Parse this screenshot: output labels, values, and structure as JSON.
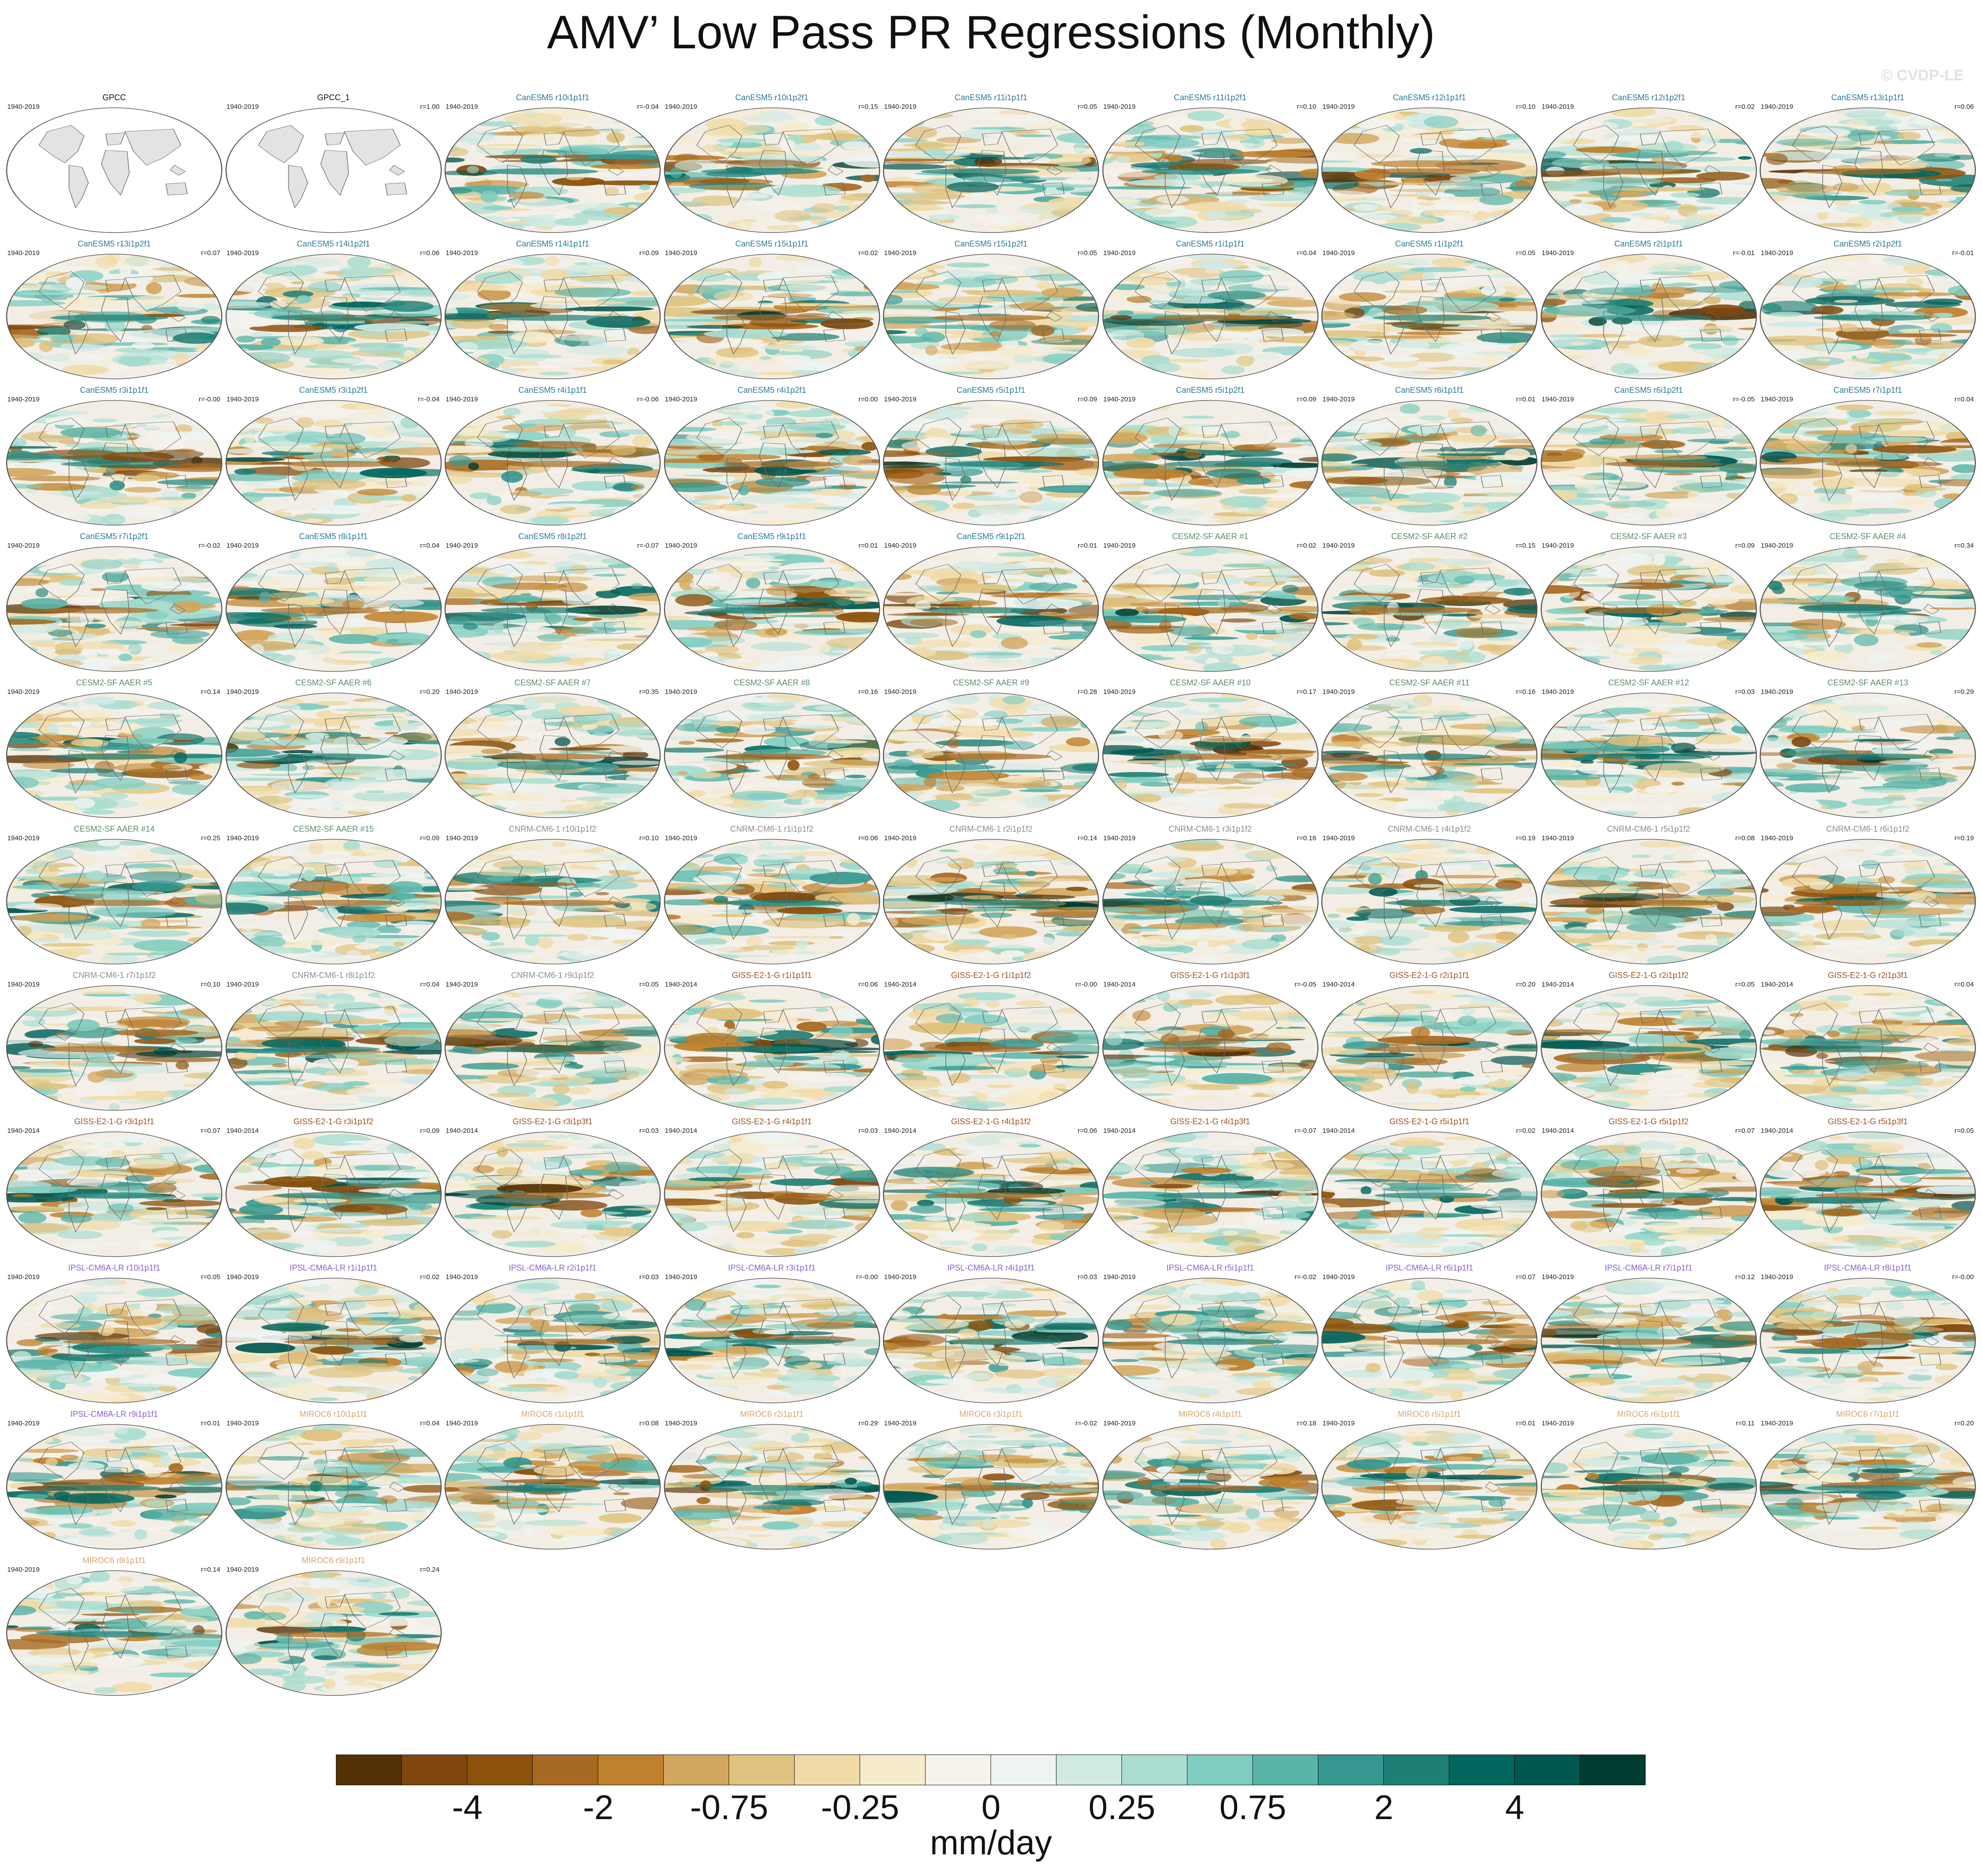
{
  "title": "AMV’ Low Pass PR Regressions (Monthly)",
  "watermark": "© CVDP-LE",
  "group_colors": {
    "obs": "#111111",
    "CanESM5": "#2a7a9b",
    "CESM2-SF AAER": "#5b8e6a",
    "CNRM-CM6-1": "#8c8c8c",
    "GISS-E2-1-G": "#a0531f",
    "IPSL-CM6A-LR": "#8a5fd0",
    "MIROC6": "#d9a46c"
  },
  "land_fill": "#e3e3e3",
  "coast_color": "#6a6a6a",
  "panels": [
    {
      "name": "GPCC",
      "years": "1940-2019",
      "r": "",
      "group": "obs",
      "style": "obs"
    },
    {
      "name": "GPCC_1",
      "years": "1940-2019",
      "r": "r=1.00",
      "group": "obs",
      "style": "obs"
    },
    {
      "name": "CanESM5 r10i1p1f1",
      "years": "1940-2019",
      "r": "r=-0.04",
      "group": "CanESM5",
      "style": "model"
    },
    {
      "name": "CanESM5 r10i1p2f1",
      "years": "1940-2019",
      "r": "r=0.15",
      "group": "CanESM5",
      "style": "model"
    },
    {
      "name": "CanESM5 r11i1p1f1",
      "years": "1940-2019",
      "r": "r=0.05",
      "group": "CanESM5",
      "style": "model"
    },
    {
      "name": "CanESM5 r11i1p2f1",
      "years": "1940-2019",
      "r": "r=0.10",
      "group": "CanESM5",
      "style": "model"
    },
    {
      "name": "CanESM5 r12i1p1f1",
      "years": "1940-2019",
      "r": "r=0.10",
      "group": "CanESM5",
      "style": "model"
    },
    {
      "name": "CanESM5 r12i1p2f1",
      "years": "1940-2019",
      "r": "r=0.02",
      "group": "CanESM5",
      "style": "model"
    },
    {
      "name": "CanESM5 r13i1p1f1",
      "years": "1940-2019",
      "r": "r=0.06",
      "group": "CanESM5",
      "style": "model"
    },
    {
      "name": "CanESM5 r13i1p2f1",
      "years": "1940-2019",
      "r": "r=0.07",
      "group": "CanESM5",
      "style": "model"
    },
    {
      "name": "CanESM5 r14i1p2f1",
      "years": "1940-2019",
      "r": "r=0.06",
      "group": "CanESM5",
      "style": "model"
    },
    {
      "name": "CanESM5 r14i1p1f1",
      "years": "1940-2019",
      "r": "r=0.09",
      "group": "CanESM5",
      "style": "model"
    },
    {
      "name": "CanESM5 r15i1p1f1",
      "years": "1940-2019",
      "r": "r=0.02",
      "group": "CanESM5",
      "style": "model"
    },
    {
      "name": "CanESM5 r15i1p2f1",
      "years": "1940-2019",
      "r": "r=0.05",
      "group": "CanESM5",
      "style": "model"
    },
    {
      "name": "CanESM5 r1i1p1f1",
      "years": "1940-2019",
      "r": "r=0.04",
      "group": "CanESM5",
      "style": "model"
    },
    {
      "name": "CanESM5 r1i1p2f1",
      "years": "1940-2019",
      "r": "r=0.05",
      "group": "CanESM5",
      "style": "model"
    },
    {
      "name": "CanESM5 r2i1p1f1",
      "years": "1940-2019",
      "r": "r=-0.01",
      "group": "CanESM5",
      "style": "model"
    },
    {
      "name": "CanESM5 r2i1p2f1",
      "years": "1940-2019",
      "r": "r=-0.01",
      "group": "CanESM5",
      "style": "model"
    },
    {
      "name": "CanESM5 r3i1p1f1",
      "years": "1940-2019",
      "r": "r=-0.00",
      "group": "CanESM5",
      "style": "model"
    },
    {
      "name": "CanESM5 r3i1p2f1",
      "years": "1940-2019",
      "r": "r=-0.04",
      "group": "CanESM5",
      "style": "model"
    },
    {
      "name": "CanESM5 r4i1p1f1",
      "years": "1940-2019",
      "r": "r=-0.06",
      "group": "CanESM5",
      "style": "model"
    },
    {
      "name": "CanESM5 r4i1p2f1",
      "years": "1940-2019",
      "r": "r=0.00",
      "group": "CanESM5",
      "style": "model"
    },
    {
      "name": "CanESM5 r5i1p1f1",
      "years": "1940-2019",
      "r": "r=0.09",
      "group": "CanESM5",
      "style": "model"
    },
    {
      "name": "CanESM5 r5i1p2f1",
      "years": "1940-2019",
      "r": "r=0.09",
      "group": "CanESM5",
      "style": "model"
    },
    {
      "name": "CanESM5 r6i1p1f1",
      "years": "1940-2019",
      "r": "r=0.01",
      "group": "CanESM5",
      "style": "model"
    },
    {
      "name": "CanESM5 r6i1p2f1",
      "years": "1940-2019",
      "r": "r=-0.05",
      "group": "CanESM5",
      "style": "model"
    },
    {
      "name": "CanESM5 r7i1p1f1",
      "years": "1940-2019",
      "r": "r=0.04",
      "group": "CanESM5",
      "style": "model"
    },
    {
      "name": "CanESM5 r7i1p2f1",
      "years": "1940-2019",
      "r": "r=-0.02",
      "group": "CanESM5",
      "style": "model"
    },
    {
      "name": "CanESM5 r8i1p1f1",
      "years": "1940-2019",
      "r": "r=0.04",
      "group": "CanESM5",
      "style": "model"
    },
    {
      "name": "CanESM5 r8i1p2f1",
      "years": "1940-2019",
      "r": "r=-0.07",
      "group": "CanESM5",
      "style": "model"
    },
    {
      "name": "CanESM5 r9i1p1f1",
      "years": "1940-2019",
      "r": "r=0.01",
      "group": "CanESM5",
      "style": "model"
    },
    {
      "name": "CanESM5 r9i1p2f1",
      "years": "1940-2019",
      "r": "r=0.01",
      "group": "CanESM5",
      "style": "model"
    },
    {
      "name": "CESM2-SF AAER #1",
      "years": "1940-2019",
      "r": "r=0.02",
      "group": "CESM2-SF AAER",
      "style": "model"
    },
    {
      "name": "CESM2-SF AAER #2",
      "years": "1940-2019",
      "r": "r=0.15",
      "group": "CESM2-SF AAER",
      "style": "model"
    },
    {
      "name": "CESM2-SF AAER #3",
      "years": "1940-2019",
      "r": "r=0.09",
      "group": "CESM2-SF AAER",
      "style": "model"
    },
    {
      "name": "CESM2-SF AAER #4",
      "years": "1940-2019",
      "r": "r=0.34",
      "group": "CESM2-SF AAER",
      "style": "model"
    },
    {
      "name": "CESM2-SF AAER #5",
      "years": "1940-2019",
      "r": "r=0.14",
      "group": "CESM2-SF AAER",
      "style": "model"
    },
    {
      "name": "CESM2-SF AAER #6",
      "years": "1940-2019",
      "r": "r=0.20",
      "group": "CESM2-SF AAER",
      "style": "model"
    },
    {
      "name": "CESM2-SF AAER #7",
      "years": "1940-2019",
      "r": "r=0.35",
      "group": "CESM2-SF AAER",
      "style": "model"
    },
    {
      "name": "CESM2-SF AAER #8",
      "years": "1940-2019",
      "r": "r=0.16",
      "group": "CESM2-SF AAER",
      "style": "model"
    },
    {
      "name": "CESM2-SF AAER #9",
      "years": "1940-2019",
      "r": "r=0.28",
      "group": "CESM2-SF AAER",
      "style": "model"
    },
    {
      "name": "CESM2-SF AAER #10",
      "years": "1940-2019",
      "r": "r=0.17",
      "group": "CESM2-SF AAER",
      "style": "model"
    },
    {
      "name": "CESM2-SF AAER #11",
      "years": "1940-2019",
      "r": "r=0.16",
      "group": "CESM2-SF AAER",
      "style": "model"
    },
    {
      "name": "CESM2-SF AAER #12",
      "years": "1940-2019",
      "r": "r=0.03",
      "group": "CESM2-SF AAER",
      "style": "model"
    },
    {
      "name": "CESM2-SF AAER #13",
      "years": "1940-2019",
      "r": "r=0.29",
      "group": "CESM2-SF AAER",
      "style": "model"
    },
    {
      "name": "CESM2-SF AAER #14",
      "years": "1940-2019",
      "r": "r=0.25",
      "group": "CESM2-SF AAER",
      "style": "model"
    },
    {
      "name": "CESM2-SF AAER #15",
      "years": "1940-2019",
      "r": "r=0.09",
      "group": "CESM2-SF AAER",
      "style": "model"
    },
    {
      "name": "CNRM-CM6-1 r10i1p1f2",
      "years": "1940-2019",
      "r": "r=0.10",
      "group": "CNRM-CM6-1",
      "style": "model"
    },
    {
      "name": "CNRM-CM6-1 r1i1p1f2",
      "years": "1940-2019",
      "r": "r=0.06",
      "group": "CNRM-CM6-1",
      "style": "model"
    },
    {
      "name": "CNRM-CM6-1 r2i1p1f2",
      "years": "1940-2019",
      "r": "r=0.14",
      "group": "CNRM-CM6-1",
      "style": "model"
    },
    {
      "name": "CNRM-CM6-1 r3i1p1f2",
      "years": "1940-2019",
      "r": "r=0.16",
      "group": "CNRM-CM6-1",
      "style": "model"
    },
    {
      "name": "CNRM-CM6-1 r4i1p1f2",
      "years": "1940-2019",
      "r": "r=0.19",
      "group": "CNRM-CM6-1",
      "style": "model"
    },
    {
      "name": "CNRM-CM6-1 r5i1p1f2",
      "years": "1940-2019",
      "r": "r=0.08",
      "group": "CNRM-CM6-1",
      "style": "model"
    },
    {
      "name": "CNRM-CM6-1 r6i1p1f2",
      "years": "1940-2019",
      "r": "r=0.19",
      "group": "CNRM-CM6-1",
      "style": "model"
    },
    {
      "name": "CNRM-CM6-1 r7i1p1f2",
      "years": "1940-2019",
      "r": "r=0.10",
      "group": "CNRM-CM6-1",
      "style": "model"
    },
    {
      "name": "CNRM-CM6-1 r8i1p1f2",
      "years": "1940-2019",
      "r": "r=0.04",
      "group": "CNRM-CM6-1",
      "style": "model"
    },
    {
      "name": "CNRM-CM6-1 r9i1p1f2",
      "years": "1940-2019",
      "r": "r=0.05",
      "group": "CNRM-CM6-1",
      "style": "model"
    },
    {
      "name": "GISS-E2-1-G r1i1p1f1",
      "years": "1940-2014",
      "r": "r=0.06",
      "group": "GISS-E2-1-G",
      "style": "model"
    },
    {
      "name": "GISS-E2-1-G r1i1p1f2",
      "years": "1940-2014",
      "r": "r=-0.00",
      "group": "GISS-E2-1-G",
      "style": "model"
    },
    {
      "name": "GISS-E2-1-G r1i1p3f1",
      "years": "1940-2014",
      "r": "r=-0.05",
      "group": "GISS-E2-1-G",
      "style": "model"
    },
    {
      "name": "GISS-E2-1-G r2i1p1f1",
      "years": "1940-2014",
      "r": "r=0.20",
      "group": "GISS-E2-1-G",
      "style": "model"
    },
    {
      "name": "GISS-E2-1-G r2i1p1f2",
      "years": "1940-2014",
      "r": "r=0.05",
      "group": "GISS-E2-1-G",
      "style": "model"
    },
    {
      "name": "GISS-E2-1-G r2i1p3f1",
      "years": "1940-2014",
      "r": "r=0.04",
      "group": "GISS-E2-1-G",
      "style": "model"
    },
    {
      "name": "GISS-E2-1-G r3i1p1f1",
      "years": "1940-2014",
      "r": "r=0.07",
      "group": "GISS-E2-1-G",
      "style": "model"
    },
    {
      "name": "GISS-E2-1-G r3i1p1f2",
      "years": "1940-2014",
      "r": "r=0.09",
      "group": "GISS-E2-1-G",
      "style": "model"
    },
    {
      "name": "GISS-E2-1-G r3i1p3f1",
      "years": "1940-2014",
      "r": "r=0.03",
      "group": "GISS-E2-1-G",
      "style": "model"
    },
    {
      "name": "GISS-E2-1-G r4i1p1f1",
      "years": "1940-2014",
      "r": "r=0.03",
      "group": "GISS-E2-1-G",
      "style": "model"
    },
    {
      "name": "GISS-E2-1-G r4i1p1f2",
      "years": "1940-2014",
      "r": "r=0.06",
      "group": "GISS-E2-1-G",
      "style": "model"
    },
    {
      "name": "GISS-E2-1-G r4i1p3f1",
      "years": "1940-2014",
      "r": "r=-0.07",
      "group": "GISS-E2-1-G",
      "style": "model"
    },
    {
      "name": "GISS-E2-1-G r5i1p1f1",
      "years": "1940-2014",
      "r": "r=0.02",
      "group": "GISS-E2-1-G",
      "style": "model"
    },
    {
      "name": "GISS-E2-1-G r5i1p1f2",
      "years": "1940-2014",
      "r": "r=0.07",
      "group": "GISS-E2-1-G",
      "style": "model"
    },
    {
      "name": "GISS-E2-1-G r5i1p3f1",
      "years": "1940-2014",
      "r": "r=0.05",
      "group": "GISS-E2-1-G",
      "style": "model"
    },
    {
      "name": "IPSL-CM6A-LR r10i1p1f1",
      "years": "1940-2019",
      "r": "r=0.05",
      "group": "IPSL-CM6A-LR",
      "style": "model"
    },
    {
      "name": "IPSL-CM6A-LR r1i1p1f1",
      "years": "1940-2019",
      "r": "r=0.02",
      "group": "IPSL-CM6A-LR",
      "style": "model"
    },
    {
      "name": "IPSL-CM6A-LR r2i1p1f1",
      "years": "1940-2019",
      "r": "r=0.03",
      "group": "IPSL-CM6A-LR",
      "style": "model"
    },
    {
      "name": "IPSL-CM6A-LR r3i1p1f1",
      "years": "1940-2019",
      "r": "r=-0.00",
      "group": "IPSL-CM6A-LR",
      "style": "model"
    },
    {
      "name": "IPSL-CM6A-LR r4i1p1f1",
      "years": "1940-2019",
      "r": "r=0.03",
      "group": "IPSL-CM6A-LR",
      "style": "model"
    },
    {
      "name": "IPSL-CM6A-LR r5i1p1f1",
      "years": "1940-2019",
      "r": "r=-0.02",
      "group": "IPSL-CM6A-LR",
      "style": "model"
    },
    {
      "name": "IPSL-CM6A-LR r6i1p1f1",
      "years": "1940-2019",
      "r": "r=0.07",
      "group": "IPSL-CM6A-LR",
      "style": "model"
    },
    {
      "name": "IPSL-CM6A-LR r7i1p1f1",
      "years": "1940-2019",
      "r": "r=0.12",
      "group": "IPSL-CM6A-LR",
      "style": "model"
    },
    {
      "name": "IPSL-CM6A-LR r8i1p1f1",
      "years": "1940-2019",
      "r": "r=-0.00",
      "group": "IPSL-CM6A-LR",
      "style": "model"
    },
    {
      "name": "IPSL-CM6A-LR r9i1p1f1",
      "years": "1940-2019",
      "r": "r=0.01",
      "group": "IPSL-CM6A-LR",
      "style": "model"
    },
    {
      "name": "MIROC6 r10i1p1f1",
      "years": "1940-2019",
      "r": "r=0.04",
      "group": "MIROC6",
      "style": "model"
    },
    {
      "name": "MIROC6 r1i1p1f1",
      "years": "1940-2019",
      "r": "r=0.08",
      "group": "MIROC6",
      "style": "model"
    },
    {
      "name": "MIROC6 r2i1p1f1",
      "years": "1940-2019",
      "r": "r=0.29",
      "group": "MIROC6",
      "style": "model"
    },
    {
      "name": "MIROC6 r3i1p1f1",
      "years": "1940-2019",
      "r": "r=-0.02",
      "group": "MIROC6",
      "style": "model"
    },
    {
      "name": "MIROC6 r4i1p1f1",
      "years": "1940-2019",
      "r": "r=0.18",
      "group": "MIROC6",
      "style": "model"
    },
    {
      "name": "MIROC6 r5i1p1f1",
      "years": "1940-2019",
      "r": "r=0.01",
      "group": "MIROC6",
      "style": "model"
    },
    {
      "name": "MIROC6 r6i1p1f1",
      "years": "1940-2019",
      "r": "r=0.11",
      "group": "MIROC6",
      "style": "model"
    },
    {
      "name": "MIROC6 r7i1p1f1",
      "years": "1940-2019",
      "r": "r=0.20",
      "group": "MIROC6",
      "style": "model"
    },
    {
      "name": "MIROC6 r8i1p1f1",
      "years": "1940-2019",
      "r": "r=0.14",
      "group": "MIROC6",
      "style": "model"
    },
    {
      "name": "MIROC6 r9i1p1f1",
      "years": "1940-2019",
      "r": "r=0.24",
      "group": "MIROC6",
      "style": "model"
    }
  ],
  "colorbar": {
    "units": "mm/day",
    "colors": [
      "#543005",
      "#7f470e",
      "#8c510a",
      "#a86a22",
      "#bf812d",
      "#d2a65e",
      "#dfc27d",
      "#f0dba7",
      "#f6ebcd",
      "#f5f2ec",
      "#eef4f2",
      "#cfe9e3",
      "#a8ddd0",
      "#80cdc1",
      "#5ab4a8",
      "#35978f",
      "#1d7f75",
      "#01665e",
      "#01564f",
      "#003c30"
    ],
    "tick_labels": [
      "-4",
      "-2",
      "-0.75",
      "-0.25",
      "0",
      "0.25",
      "0.75",
      "2",
      "4"
    ]
  }
}
